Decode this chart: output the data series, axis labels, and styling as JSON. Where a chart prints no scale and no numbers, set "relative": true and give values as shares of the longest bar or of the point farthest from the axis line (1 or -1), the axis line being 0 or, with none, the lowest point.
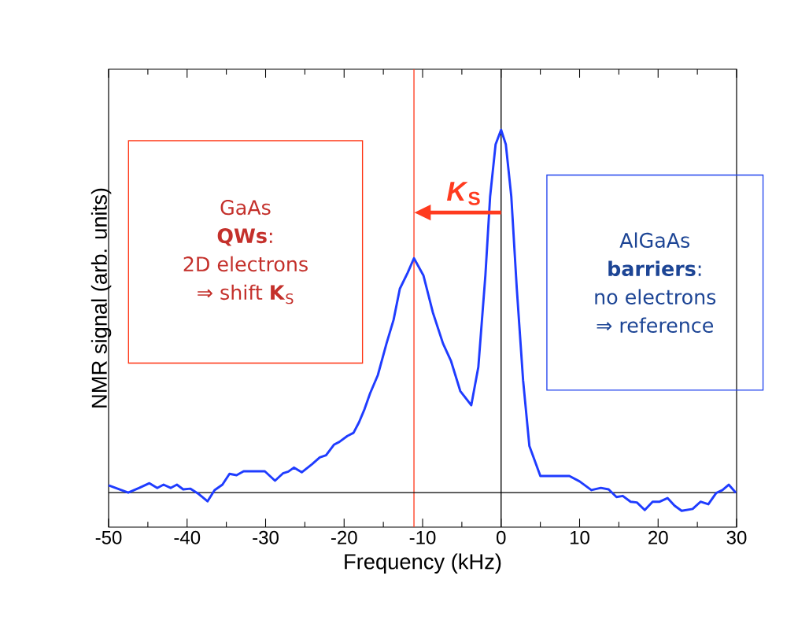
{
  "chart_data": {
    "type": "line",
    "relative": true,
    "xlabel": "Frequency  (kHz)",
    "ylabel": "NMR signal  (arb. units)",
    "xlim": [
      -50,
      30
    ],
    "xticks": [
      -50,
      -40,
      -30,
      -20,
      -10,
      0,
      10,
      20,
      30
    ],
    "x": [
      -50,
      -47.5,
      -46.1,
      -44.8,
      -43.8,
      -43.0,
      -42.1,
      -41.3,
      -40.5,
      -39.6,
      -38.5,
      -37.4,
      -36.5,
      -35.5,
      -34.6,
      -33.7,
      -32.8,
      -31.5,
      -30.1,
      -28.8,
      -27.8,
      -27.1,
      -26.4,
      -25.4,
      -24.1,
      -23.1,
      -22.3,
      -21.3,
      -20.6,
      -19.6,
      -18.8,
      -18.1,
      -17.4,
      -16.7,
      -15.7,
      -14.6,
      -13.7,
      -12.9,
      -11.9,
      -11.1,
      -9.9,
      -8.7,
      -7.4,
      -6.4,
      -5.2,
      -3.8,
      -2.9,
      -2.0,
      -1.4,
      -0.7,
      0,
      0.6,
      1.3,
      2.0,
      2.8,
      3.6,
      5.0,
      6.6,
      8.7,
      10.0,
      11.5,
      12.7,
      13.7,
      14.7,
      15.5,
      16.5,
      17.3,
      18.3,
      19.3,
      20.2,
      21.2,
      22.1,
      23.0,
      24.4,
      25.4,
      26.4,
      27.4,
      28.2,
      29.0,
      29.9
    ],
    "series": [
      {
        "color": "#1f3cff",
        "values": [
          0.02,
          0.0,
          0.013,
          0.026,
          0.013,
          0.022,
          0.013,
          0.022,
          0.009,
          0.011,
          -0.004,
          -0.024,
          0.007,
          0.022,
          0.052,
          0.048,
          0.059,
          0.059,
          0.059,
          0.033,
          0.053,
          0.058,
          0.069,
          0.056,
          0.078,
          0.097,
          0.103,
          0.132,
          0.14,
          0.156,
          0.165,
          0.194,
          0.23,
          0.273,
          0.324,
          0.411,
          0.476,
          0.562,
          0.606,
          0.646,
          0.599,
          0.497,
          0.411,
          0.364,
          0.28,
          0.241,
          0.346,
          0.599,
          0.816,
          0.96,
          1.0,
          0.96,
          0.816,
          0.562,
          0.31,
          0.129,
          0.046,
          0.046,
          0.046,
          0.031,
          0.007,
          0.013,
          0.009,
          -0.012,
          -0.009,
          -0.025,
          -0.027,
          -0.048,
          -0.025,
          -0.025,
          -0.015,
          -0.036,
          -0.05,
          -0.045,
          -0.025,
          -0.032,
          -0.001,
          0.007,
          0.022,
          0.0
        ]
      }
    ],
    "ref_lines": [
      {
        "axis": "x",
        "value": 0,
        "color": "#000000"
      },
      {
        "axis": "x",
        "value": -11.1,
        "color": "#ff3b1f"
      },
      {
        "axis": "y",
        "value": 0,
        "color": "#000000"
      }
    ],
    "annotations": [
      "GaAs",
      "**QWs**:",
      "2D electrons",
      "⇒ shift  **K**$_{S}$",
      "AlGaAs",
      "**barriers**:",
      "no electrons",
      "⇒ reference",
      "*K*$_{S}$"
    ],
    "grid": false,
    "line_style": "solid",
    "marker": "none"
  }
}
